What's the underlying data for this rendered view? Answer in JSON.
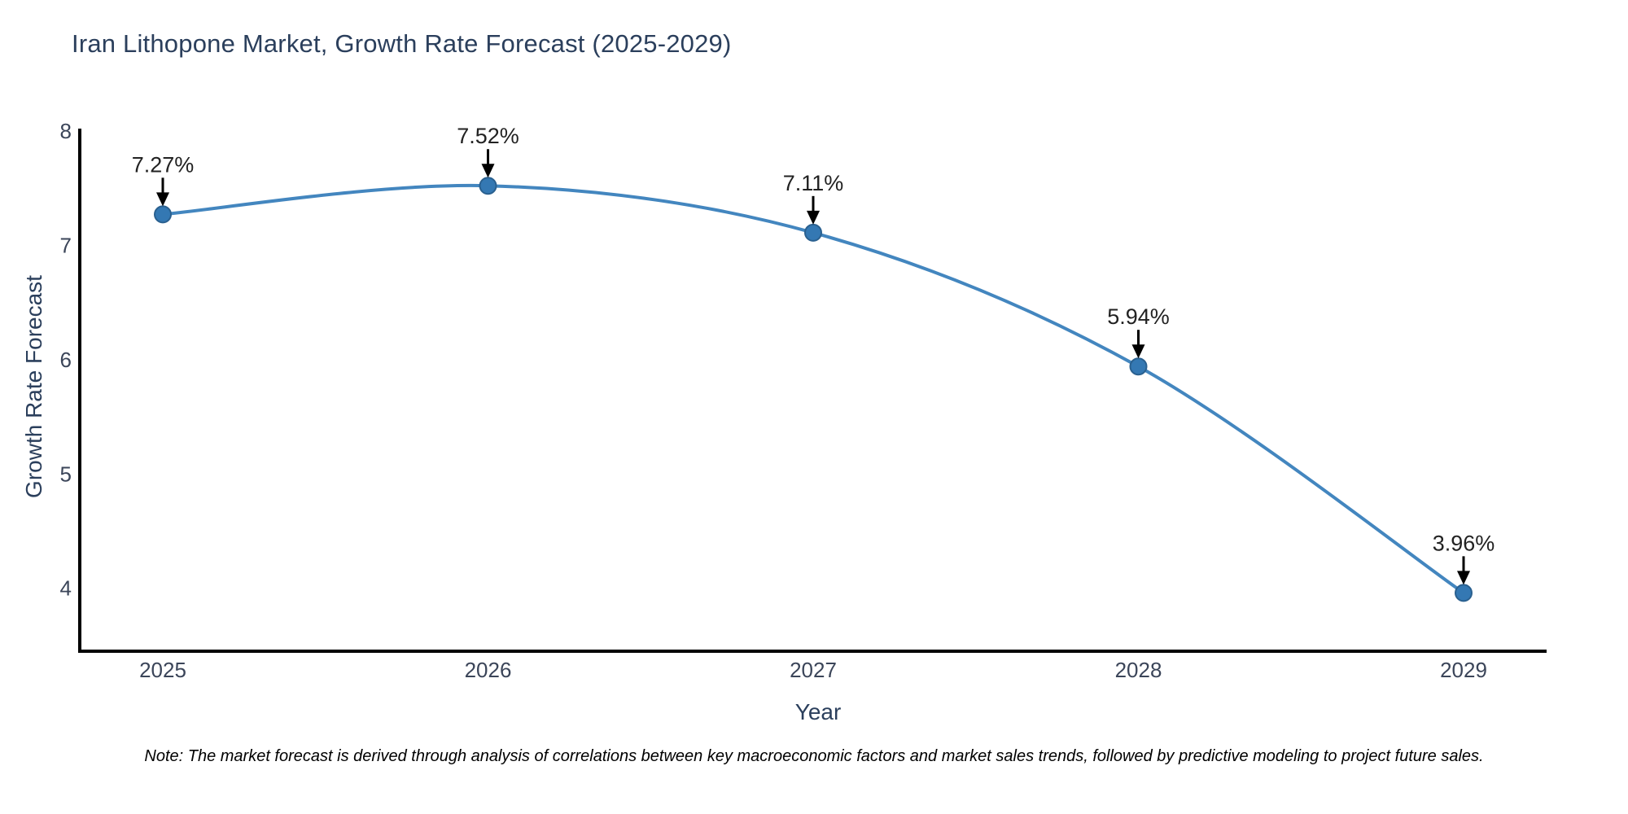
{
  "title": "Iran Lithopone Market, Growth Rate Forecast (2025-2029)",
  "note": "Note: The market forecast is derived through analysis of correlations between key macroeconomic factors and market sales trends, followed by predictive modeling to project future sales.",
  "chart_data": {
    "type": "line",
    "title": "Iran Lithopone Market, Growth Rate Forecast (2025-2029)",
    "xlabel": "Year",
    "ylabel": "Growth Rate Forecast",
    "categories": [
      "2025",
      "2026",
      "2027",
      "2028",
      "2029"
    ],
    "values": [
      7.27,
      7.52,
      7.11,
      5.94,
      3.96
    ],
    "point_labels": [
      "7.27%",
      "7.52%",
      "7.11%",
      "5.94%",
      "3.96%"
    ],
    "yticks": [
      4,
      5,
      6,
      7,
      8
    ],
    "ylim": [
      3.45,
      8.02
    ],
    "line_shape": "spline",
    "grid": false,
    "legend": "none",
    "colors": {
      "line": "#4386bf",
      "marker_fill": "#3478b3",
      "marker_edge": "#2a608f",
      "axis_line": "#000000",
      "tick_text": "#3b4559",
      "title_text": "#2b3f5c",
      "annotation_text": "#222222",
      "arrow": "#000000",
      "background": "#ffffff"
    }
  }
}
